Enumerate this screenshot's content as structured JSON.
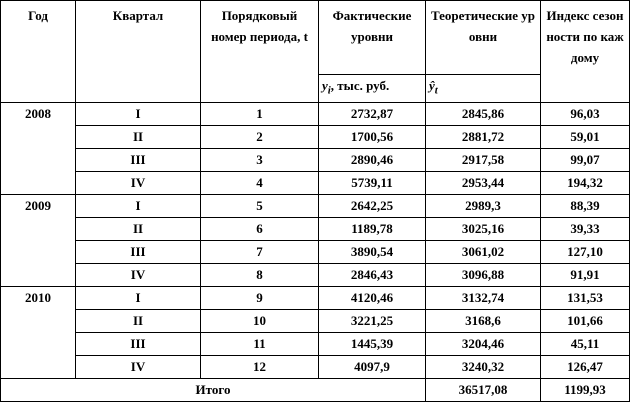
{
  "header": {
    "year": "Год",
    "quarter": "Квартал",
    "period": "Порядковый номер периода, t",
    "actual": "Фактические уровни",
    "actual_unit": {
      "symbol": "y",
      "sub": "i",
      "text": ", тыс. руб."
    },
    "theoretical": "Теоретические уровни",
    "theoretical_unit": {
      "symbol": "ŷ",
      "sub": "t"
    },
    "index": "Индекс сезонности по каждому"
  },
  "groups": [
    {
      "year": "2008",
      "rows": [
        [
          "I",
          "1",
          "2732,87",
          "2845,86",
          "96,03"
        ],
        [
          "II",
          "2",
          "1700,56",
          "2881,72",
          "59,01"
        ],
        [
          "III",
          "3",
          "2890,46",
          "2917,58",
          "99,07"
        ],
        [
          "IV",
          "4",
          "5739,11",
          "2953,44",
          "194,32"
        ]
      ]
    },
    {
      "year": "2009",
      "rows": [
        [
          "I",
          "5",
          "2642,25",
          "2989,3",
          "88,39"
        ],
        [
          "II",
          "6",
          "1189,78",
          "3025,16",
          "39,33"
        ],
        [
          "III",
          "7",
          "3890,54",
          "3061,02",
          "127,10"
        ],
        [
          "IV",
          "8",
          "2846,43",
          "3096,88",
          "91,91"
        ]
      ]
    },
    {
      "year": "2010",
      "rows": [
        [
          "I",
          "9",
          "4120,46",
          "3132,74",
          "131,53"
        ],
        [
          "II",
          "10",
          "3221,25",
          "3168,6",
          "101,66"
        ],
        [
          "III",
          "11",
          "1445,39",
          "3204,46",
          "45,11"
        ],
        [
          "IV",
          "12",
          "4097,9",
          "3240,32",
          "126,47"
        ]
      ]
    }
  ],
  "total": {
    "label": "Итого",
    "theoretical": "36517,08",
    "index": "1199,93"
  }
}
